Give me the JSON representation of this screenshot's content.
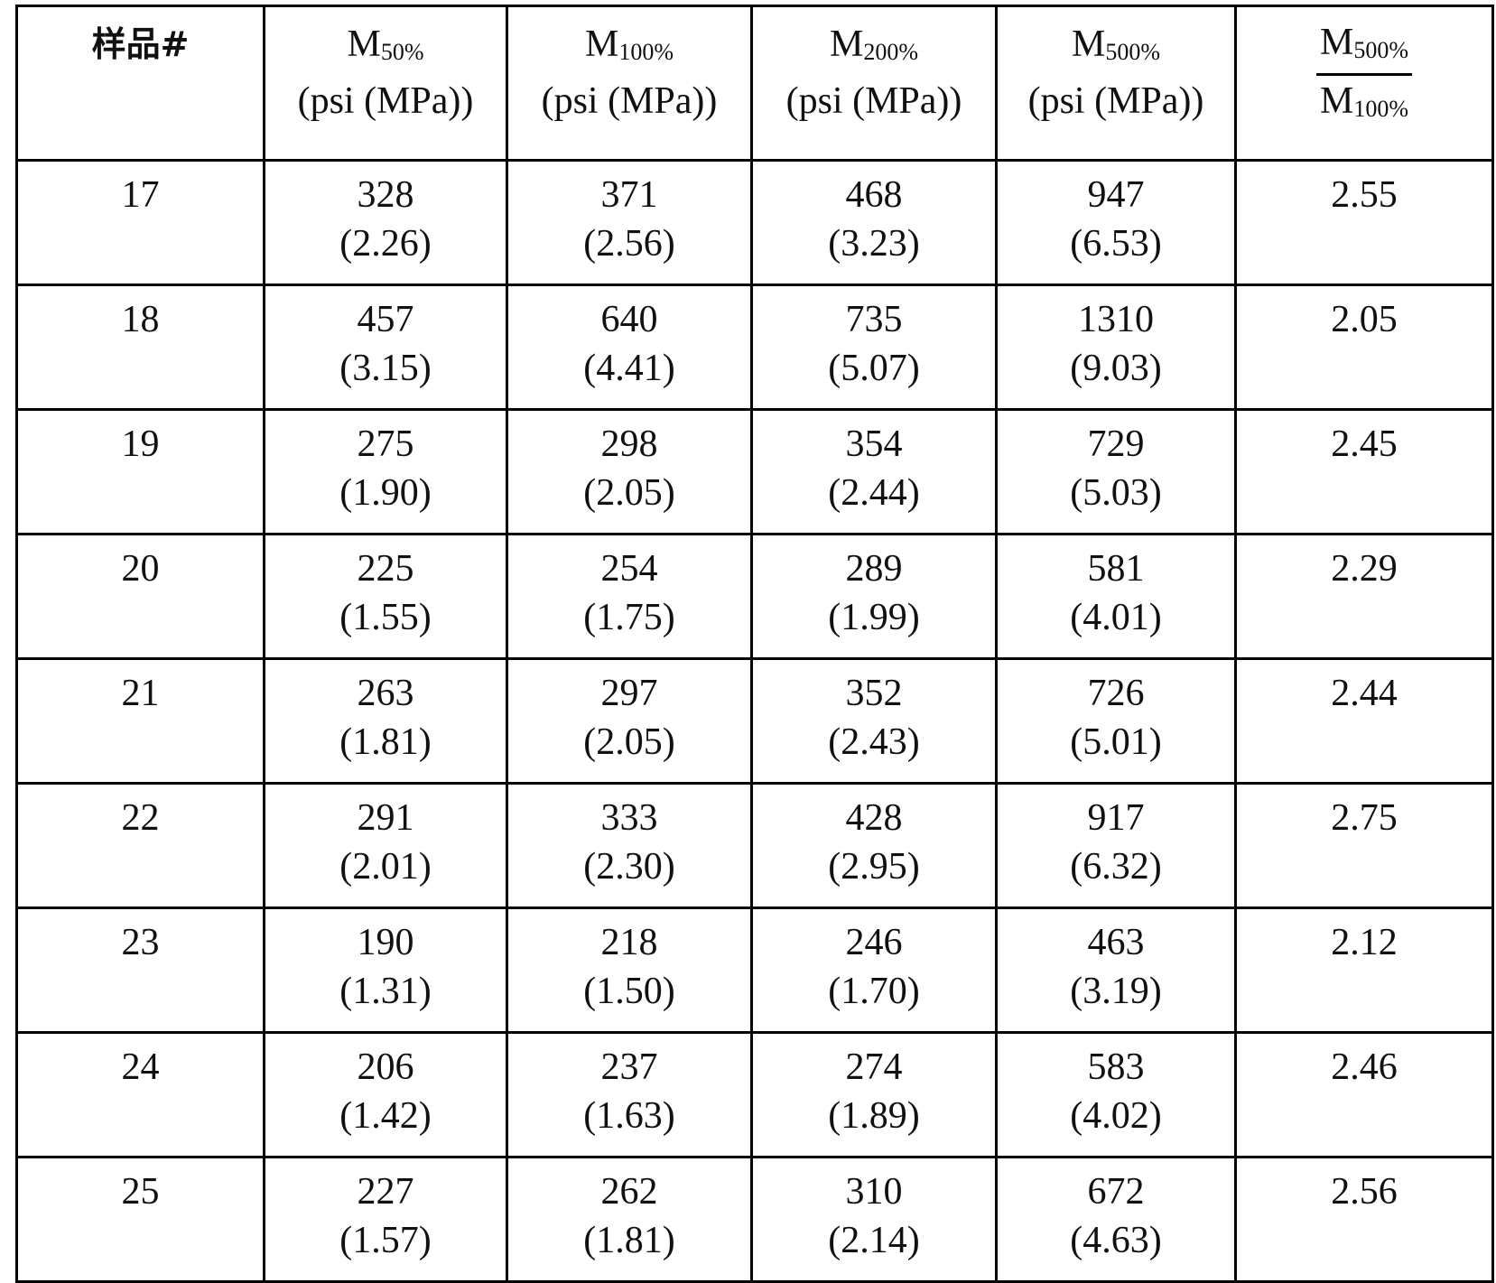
{
  "header": {
    "sample": "样品#",
    "columns": [
      {
        "symbol": "M",
        "subscript": "50%",
        "unit": "(psi (MPa))"
      },
      {
        "symbol": "M",
        "subscript": "100%",
        "unit": "(psi (MPa))"
      },
      {
        "symbol": "M",
        "subscript": "200%",
        "unit": "(psi (MPa))"
      },
      {
        "symbol": "M",
        "subscript": "500%",
        "unit": "(psi (MPa))"
      }
    ],
    "ratio": {
      "numerator": {
        "symbol": "M",
        "subscript": "500%"
      },
      "denominator": {
        "symbol": "M",
        "subscript": "100%"
      }
    }
  },
  "rows": [
    {
      "sample": "17",
      "cells": [
        {
          "psi": "328",
          "mpa": "(2.26)"
        },
        {
          "psi": "371",
          "mpa": "(2.56)"
        },
        {
          "psi": "468",
          "mpa": "(3.23)"
        },
        {
          "psi": "947",
          "mpa": "(6.53)"
        }
      ],
      "ratio": "2.55"
    },
    {
      "sample": "18",
      "cells": [
        {
          "psi": "457",
          "mpa": "(3.15)"
        },
        {
          "psi": "640",
          "mpa": "(4.41)"
        },
        {
          "psi": "735",
          "mpa": "(5.07)"
        },
        {
          "psi": "1310",
          "mpa": "(9.03)"
        }
      ],
      "ratio": "2.05"
    },
    {
      "sample": "19",
      "cells": [
        {
          "psi": "275",
          "mpa": "(1.90)"
        },
        {
          "psi": "298",
          "mpa": "(2.05)"
        },
        {
          "psi": "354",
          "mpa": "(2.44)"
        },
        {
          "psi": "729",
          "mpa": "(5.03)"
        }
      ],
      "ratio": "2.45"
    },
    {
      "sample": "20",
      "cells": [
        {
          "psi": "225",
          "mpa": "(1.55)"
        },
        {
          "psi": "254",
          "mpa": "(1.75)"
        },
        {
          "psi": "289",
          "mpa": "(1.99)"
        },
        {
          "psi": "581",
          "mpa": "(4.01)"
        }
      ],
      "ratio": "2.29"
    },
    {
      "sample": "21",
      "cells": [
        {
          "psi": "263",
          "mpa": "(1.81)"
        },
        {
          "psi": "297",
          "mpa": "(2.05)"
        },
        {
          "psi": "352",
          "mpa": "(2.43)"
        },
        {
          "psi": "726",
          "mpa": "(5.01)"
        }
      ],
      "ratio": "2.44"
    },
    {
      "sample": "22",
      "cells": [
        {
          "psi": "291",
          "mpa": "(2.01)"
        },
        {
          "psi": "333",
          "mpa": "(2.30)"
        },
        {
          "psi": "428",
          "mpa": "(2.95)"
        },
        {
          "psi": "917",
          "mpa": "(6.32)"
        }
      ],
      "ratio": "2.75"
    },
    {
      "sample": "23",
      "cells": [
        {
          "psi": "190",
          "mpa": "(1.31)"
        },
        {
          "psi": "218",
          "mpa": "(1.50)"
        },
        {
          "psi": "246",
          "mpa": "(1.70)"
        },
        {
          "psi": "463",
          "mpa": "(3.19)"
        }
      ],
      "ratio": "2.12"
    },
    {
      "sample": "24",
      "cells": [
        {
          "psi": "206",
          "mpa": "(1.42)"
        },
        {
          "psi": "237",
          "mpa": "(1.63)"
        },
        {
          "psi": "274",
          "mpa": "(1.89)"
        },
        {
          "psi": "583",
          "mpa": "(4.02)"
        }
      ],
      "ratio": "2.46"
    },
    {
      "sample": "25",
      "cells": [
        {
          "psi": "227",
          "mpa": "(1.57)"
        },
        {
          "psi": "262",
          "mpa": "(1.81)"
        },
        {
          "psi": "310",
          "mpa": "(2.14)"
        },
        {
          "psi": "672",
          "mpa": "(4.63)"
        }
      ],
      "ratio": "2.56"
    }
  ]
}
